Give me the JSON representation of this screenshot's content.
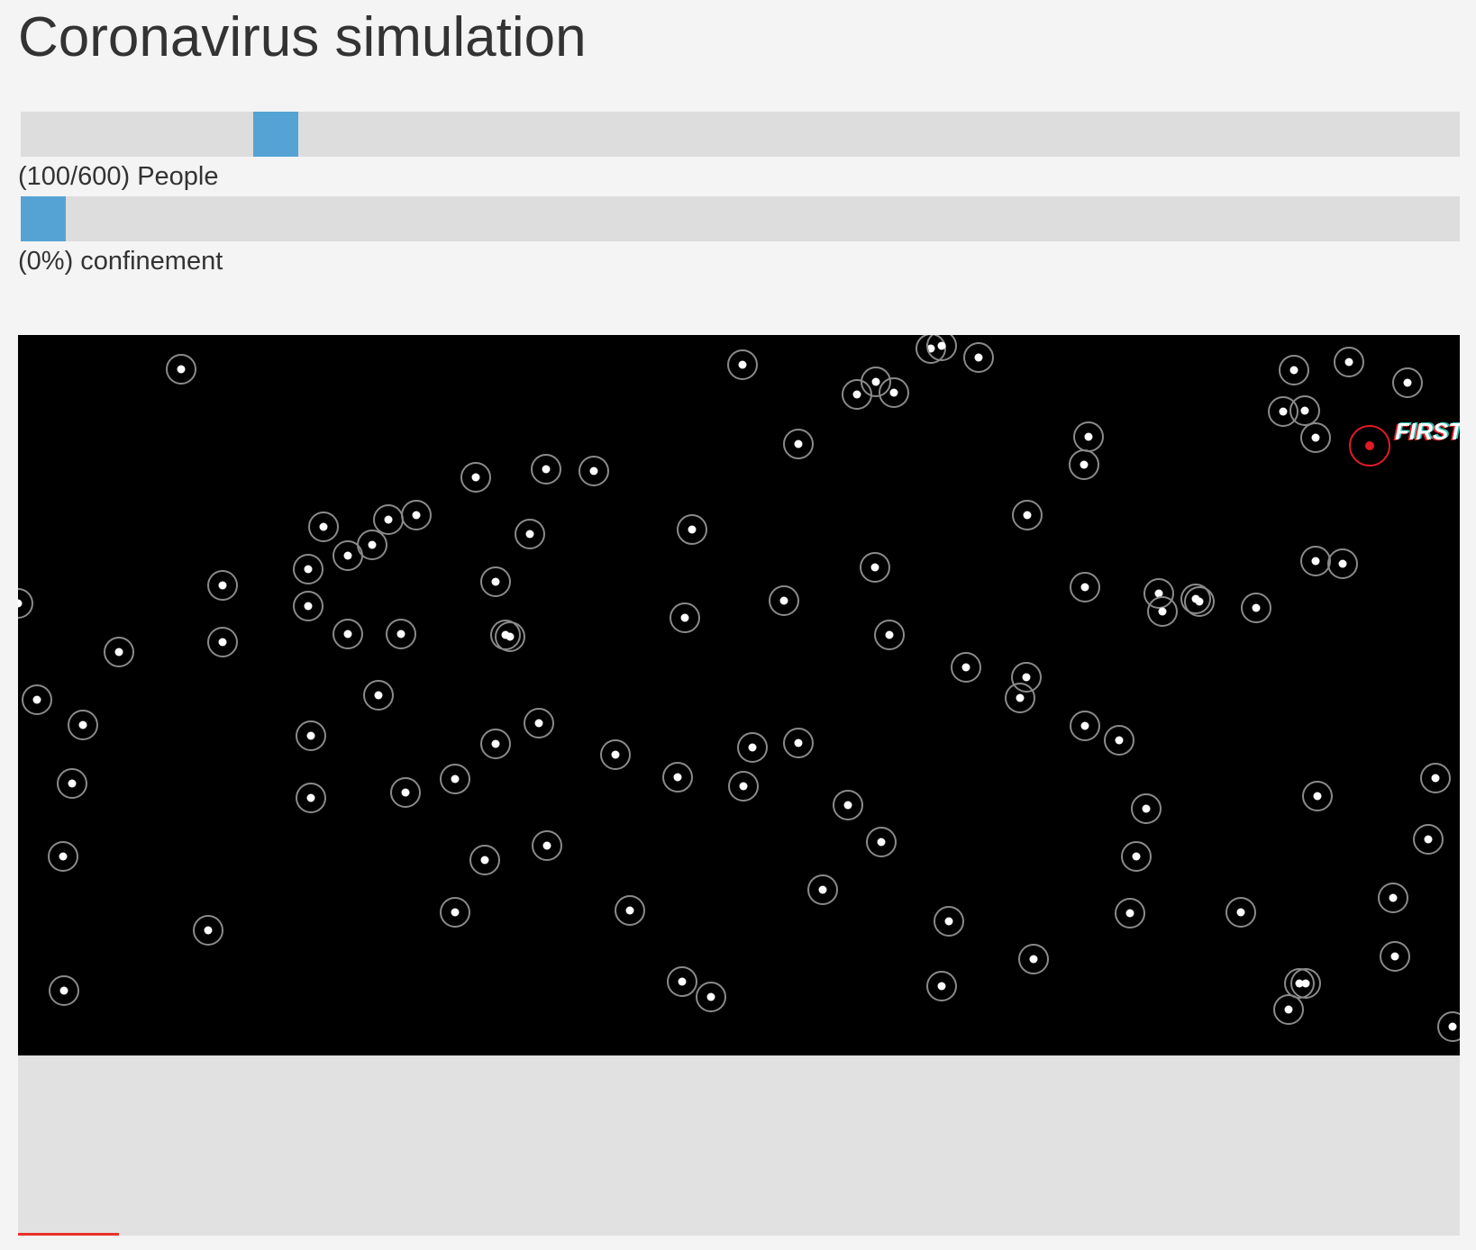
{
  "page": {
    "title": "Coronavirus simulation"
  },
  "controls": {
    "people": {
      "label": "(100/600) People",
      "value": 100,
      "max": 600
    },
    "confinement": {
      "label": "(0%) confinement",
      "value": 0,
      "max": 100
    }
  },
  "simulation": {
    "first_label": "FIRST",
    "colors": {
      "background": "#000000",
      "healthy_dot": "#ffffff",
      "healthy_ring": "#8a8a8a",
      "infected": "#e01b24",
      "slider_track": "#dddddd",
      "slider_thumb": "#55a3d4",
      "stats_background": "#e1e1e1",
      "first_label_fill": "#ffffff",
      "first_label_shadow_1": "#2ec4b6",
      "first_label_shadow_2": "#e01b24"
    }
  },
  "stats": {
    "infected_fraction": 0.07
  }
}
